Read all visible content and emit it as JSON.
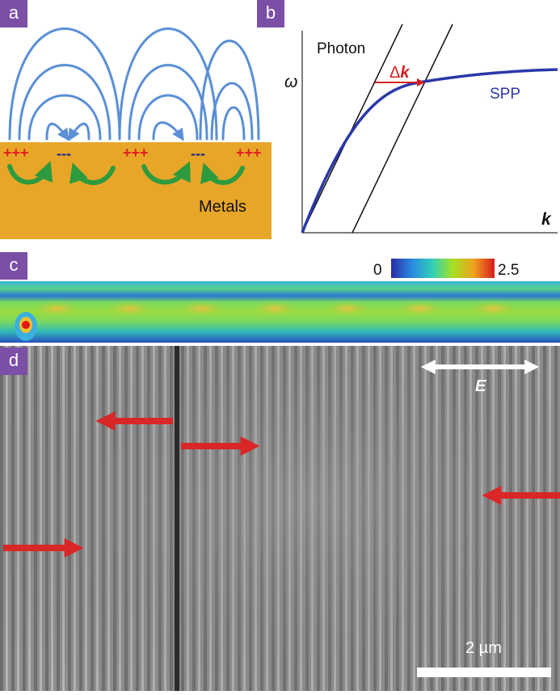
{
  "panels": {
    "a": {
      "label": "a",
      "plus_text": "+++",
      "minus_text": "---",
      "metal_label": "Metals",
      "colors": {
        "metal": "#e8a628",
        "field": "#5b8fd6",
        "plus": "#e02020",
        "minus": "#1a2a8a",
        "arrow_green": "#2e9a3e"
      }
    },
    "b": {
      "label": "b",
      "photon_label": "Photon",
      "delta_k_prefix": "Δ",
      "delta_k_symbol": "k",
      "spp_label": "SPP",
      "y_axis_label": "ω",
      "x_axis_label": "k",
      "colors": {
        "spp": "#2a38a8",
        "delta": "#d42020",
        "light_line": "#111111"
      }
    },
    "c": {
      "label": "c",
      "colorbar_min": "0",
      "colorbar_max": "2.5"
    },
    "d": {
      "label": "d",
      "e_field_label": "E",
      "scale_bar_label": "2 µm",
      "colors": {
        "arrow": "#d92626",
        "background": "#8e8e8e"
      }
    }
  }
}
